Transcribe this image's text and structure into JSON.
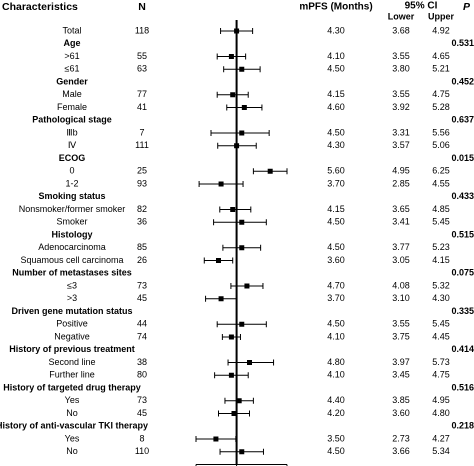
{
  "chart_data": {
    "type": "forest",
    "column_labels": {
      "characteristics": "Characteristics",
      "n": "N",
      "estimate": "mPFS (Months)",
      "ci": "95% CI",
      "lower": "Lower",
      "upper": "Upper",
      "p": "P"
    },
    "overall": {
      "label": "Total",
      "n": 118,
      "mpfs": {
        "value": 4.3,
        "label": "4.30"
      },
      "lower": 3.68,
      "upper": 4.92
    },
    "groups": [
      {
        "name": "Age",
        "p": 0.531,
        "rows": [
          {
            "label": ">61",
            "n": 55,
            "mpfs": {
              "value": 4.1,
              "label": "4.10"
            },
            "lower": 3.55,
            "upper": 4.65
          },
          {
            "label": "≤61",
            "n": 63,
            "mpfs": {
              "value": 4.5,
              "label": "4.50"
            },
            "lower": {
              "value": 3.8,
              "label": "3.80"
            },
            "upper": 5.21
          }
        ]
      },
      {
        "name": "Gender",
        "p": 0.452,
        "rows": [
          {
            "label": "Male",
            "n": 77,
            "mpfs": 4.15,
            "lower": 3.55,
            "upper": 4.75
          },
          {
            "label": "Female",
            "n": 41,
            "mpfs": {
              "value": 4.6,
              "label": "4.60"
            },
            "lower": 3.92,
            "upper": 5.28
          }
        ]
      },
      {
        "name": "Pathological stage",
        "p": 0.637,
        "rows": [
          {
            "label": "Ⅲb",
            "n": 7,
            "mpfs": {
              "value": 4.5,
              "label": "4.50"
            },
            "lower": 3.31,
            "upper": 5.56
          },
          {
            "label": "Ⅳ",
            "n": 111,
            "mpfs": {
              "value": 4.3,
              "label": "4.30"
            },
            "lower": 3.57,
            "upper": 5.06
          }
        ]
      },
      {
        "name": "ECOG",
        "p": 0.015,
        "rows": [
          {
            "label": "0",
            "n": 25,
            "mpfs": {
              "value": 5.6,
              "label": "5.60"
            },
            "lower": 4.95,
            "upper": 6.25
          },
          {
            "label": "1-2",
            "n": 93,
            "mpfs": {
              "value": 3.7,
              "label": "3.70"
            },
            "lower": 2.85,
            "upper": 4.55
          }
        ]
      },
      {
        "name": "Smoking status",
        "p": 0.433,
        "rows": [
          {
            "label": "Nonsmoker/former smoker",
            "n": 82,
            "mpfs": 4.15,
            "lower": 3.65,
            "upper": 4.85
          },
          {
            "label": "Smoker",
            "n": 36,
            "mpfs": {
              "value": 4.5,
              "label": "4.50"
            },
            "lower": 3.41,
            "upper": 5.45
          }
        ]
      },
      {
        "name": "Histology",
        "p": 0.515,
        "rows": [
          {
            "label": "Adenocarcinoma",
            "n": 85,
            "mpfs": {
              "value": 4.5,
              "label": "4.50"
            },
            "lower": 3.77,
            "upper": 5.23
          },
          {
            "label": "Squamous cell carcinoma",
            "n": 26,
            "mpfs": {
              "value": 3.6,
              "label": "3.60"
            },
            "lower": 3.05,
            "upper": 4.15
          }
        ]
      },
      {
        "name": "Number of metastases sites",
        "p": 0.075,
        "rows": [
          {
            "label": "≤3",
            "n": 73,
            "mpfs": {
              "value": 4.7,
              "label": "4.70"
            },
            "lower": 4.08,
            "upper": 5.32
          },
          {
            "label": ">3",
            "n": 45,
            "mpfs": {
              "value": 3.7,
              "label": "3.70"
            },
            "lower": {
              "value": 3.1,
              "label": "3.10"
            },
            "upper": {
              "value": 4.3,
              "label": "4.30"
            }
          }
        ]
      },
      {
        "name": "Driven gene mutation status",
        "p": 0.335,
        "rows": [
          {
            "label": "Positive",
            "n": 44,
            "mpfs": {
              "value": 4.5,
              "label": "4.50"
            },
            "lower": 3.55,
            "upper": 5.45
          },
          {
            "label": "Negative",
            "n": 74,
            "mpfs": {
              "value": 4.1,
              "label": "4.10"
            },
            "lower": 3.75,
            "upper": 4.45
          }
        ]
      },
      {
        "name": "History of previous treatment",
        "p": 0.414,
        "rows": [
          {
            "label": "Second line",
            "n": 38,
            "mpfs": {
              "value": 4.8,
              "label": "4.80"
            },
            "lower": 3.97,
            "upper": 5.73
          },
          {
            "label": "Further line",
            "n": 80,
            "mpfs": {
              "value": 4.1,
              "label": "4.10"
            },
            "lower": 3.45,
            "upper": 4.75
          }
        ]
      },
      {
        "name": "History of targeted drug therapy",
        "p": 0.516,
        "rows": [
          {
            "label": "Yes",
            "n": 73,
            "mpfs": {
              "value": 4.4,
              "label": "4.40"
            },
            "lower": 3.85,
            "upper": 4.95
          },
          {
            "label": "No",
            "n": 45,
            "mpfs": {
              "value": 4.2,
              "label": "4.20"
            },
            "lower": {
              "value": 3.6,
              "label": "3.60"
            },
            "upper": {
              "value": 4.8,
              "label": "4.80"
            }
          }
        ]
      },
      {
        "name": "History of anti-vascular TKI therapy",
        "p": 0.218,
        "rows": [
          {
            "label": "Yes",
            "n": 8,
            "mpfs": {
              "value": 3.5,
              "label": "3.50"
            },
            "lower": 2.73,
            "upper": 4.27
          },
          {
            "label": "No",
            "n": 110,
            "mpfs": {
              "value": 4.5,
              "label": "4.50"
            },
            "lower": 3.66,
            "upper": 5.34
          }
        ]
      }
    ],
    "reference_line": 4.3,
    "xlim": [
      2.73,
      6.25
    ],
    "xticks": [
      2.73,
      {
        "value": 4.3,
        "label": "4.30"
      },
      6.25
    ],
    "color": "#000000"
  }
}
